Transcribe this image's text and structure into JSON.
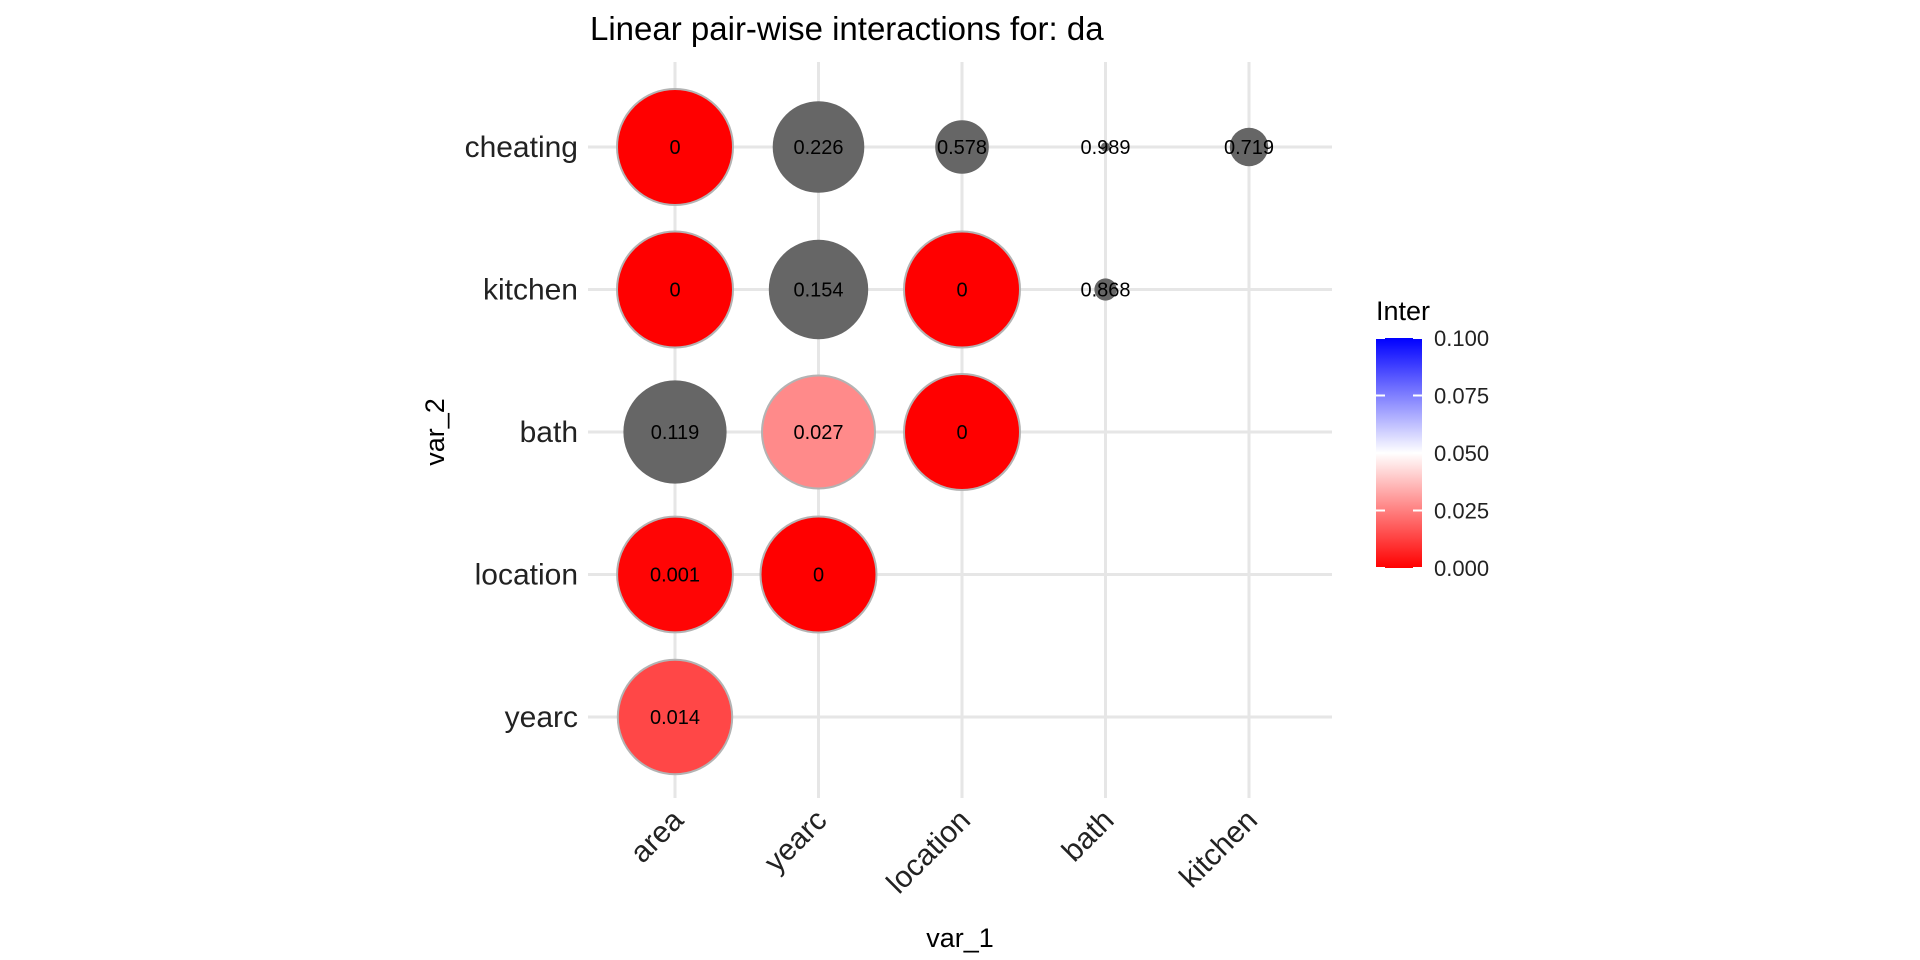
{
  "chart_data": {
    "type": "scatter",
    "title": "Linear pair-wise interactions for: da",
    "xlabel": "var_1",
    "ylabel": "var_2",
    "x_categories": [
      "area",
      "yearc",
      "location",
      "bath",
      "kitchen"
    ],
    "y_categories": [
      "yearc",
      "location",
      "bath",
      "kitchen",
      "cheating"
    ],
    "points": [
      {
        "var_1": "area",
        "var_2": "cheating",
        "label": "0",
        "inter": 0.0,
        "significant": true
      },
      {
        "var_1": "yearc",
        "var_2": "cheating",
        "label": "0.226",
        "inter": 0.226,
        "significant": false
      },
      {
        "var_1": "location",
        "var_2": "cheating",
        "label": "0.578",
        "inter": 0.578,
        "significant": false
      },
      {
        "var_1": "bath",
        "var_2": "cheating",
        "label": "0.989",
        "inter": 0.989,
        "significant": false
      },
      {
        "var_1": "kitchen",
        "var_2": "cheating",
        "label": "0.719",
        "inter": 0.719,
        "significant": false
      },
      {
        "var_1": "area",
        "var_2": "kitchen",
        "label": "0",
        "inter": 0.0,
        "significant": true
      },
      {
        "var_1": "yearc",
        "var_2": "kitchen",
        "label": "0.154",
        "inter": 0.154,
        "significant": false
      },
      {
        "var_1": "location",
        "var_2": "kitchen",
        "label": "0",
        "inter": 0.0,
        "significant": true
      },
      {
        "var_1": "bath",
        "var_2": "kitchen",
        "label": "0.868",
        "inter": 0.868,
        "significant": false
      },
      {
        "var_1": "area",
        "var_2": "bath",
        "label": "0.119",
        "inter": 0.119,
        "significant": false
      },
      {
        "var_1": "yearc",
        "var_2": "bath",
        "label": "0.027",
        "inter": 0.027,
        "significant": true
      },
      {
        "var_1": "location",
        "var_2": "bath",
        "label": "0",
        "inter": 0.0,
        "significant": true
      },
      {
        "var_1": "area",
        "var_2": "location",
        "label": "0.001",
        "inter": 0.001,
        "significant": true
      },
      {
        "var_1": "yearc",
        "var_2": "location",
        "label": "0",
        "inter": 0.0,
        "significant": true
      },
      {
        "var_1": "area",
        "var_2": "yearc",
        "label": "0.014",
        "inter": 0.014,
        "significant": true
      }
    ],
    "legend": {
      "title": "Inter",
      "placement": "right",
      "range": [
        0.0,
        0.1
      ],
      "breaks": [
        "0.100",
        "0.075",
        "0.050",
        "0.025",
        "0.000"
      ],
      "colors": {
        "low": "#ff0000",
        "mid": "#ffffff",
        "high": "#0000ff"
      }
    },
    "nonsignificant_color": "#666666",
    "grid": true
  }
}
